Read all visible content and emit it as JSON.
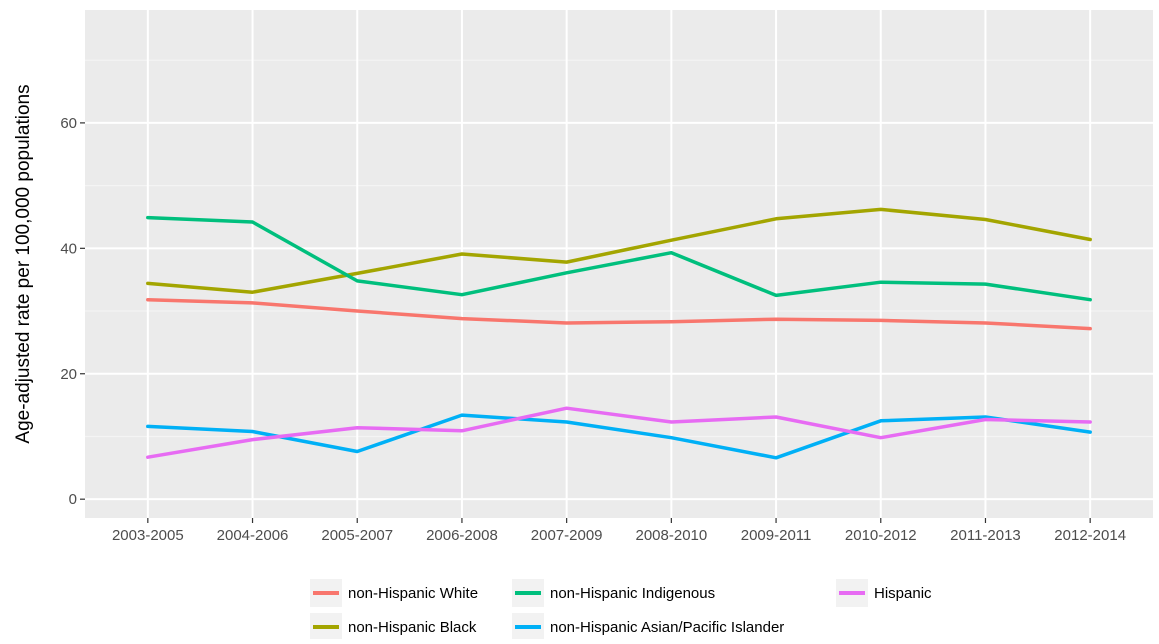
{
  "chart_data": {
    "type": "line",
    "title": "",
    "xlabel": "",
    "ylabel": "Age-adjusted rate per 100,000 populations",
    "categories": [
      "2003-2005",
      "2004-2006",
      "2005-2007",
      "2006-2008",
      "2007-2009",
      "2008-2010",
      "2009-2011",
      "2010-2012",
      "2011-2013",
      "2012-2014"
    ],
    "ylim": [
      -3,
      78
    ],
    "yticks": [
      0,
      20,
      40,
      60
    ],
    "grid": true,
    "legend_position": "bottom",
    "series": [
      {
        "name": "non-Hispanic White",
        "color": "#F8766D",
        "values": [
          31.8,
          31.3,
          30.0,
          28.8,
          28.1,
          28.3,
          28.7,
          28.5,
          28.1,
          27.2
        ]
      },
      {
        "name": "non-Hispanic Black",
        "color": "#A3A500",
        "values": [
          34.4,
          33.0,
          36.0,
          39.1,
          37.8,
          41.3,
          44.7,
          46.2,
          44.6,
          41.4
        ]
      },
      {
        "name": "non-Hispanic Indigenous",
        "color": "#00BF7D",
        "values": [
          44.9,
          44.2,
          34.8,
          32.6,
          36.1,
          39.3,
          32.5,
          34.6,
          34.3,
          31.8
        ]
      },
      {
        "name": "non-Hispanic Asian/Pacific Islander",
        "color": "#00B0F6",
        "values": [
          11.6,
          10.8,
          7.6,
          13.4,
          12.3,
          9.8,
          6.6,
          12.5,
          13.1,
          10.7
        ]
      },
      {
        "name": "Hispanic",
        "color": "#E76BF3",
        "values": [
          6.7,
          9.5,
          11.4,
          10.9,
          14.5,
          12.3,
          13.1,
          9.8,
          12.7,
          12.3
        ]
      }
    ]
  }
}
